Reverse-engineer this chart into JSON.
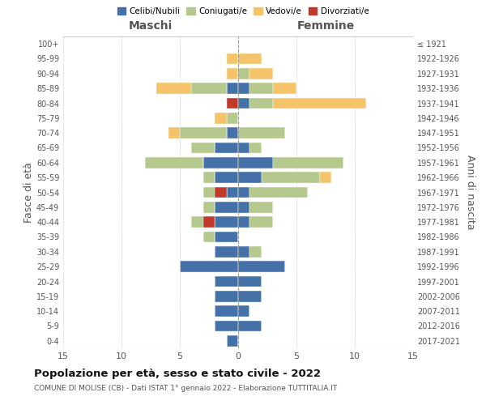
{
  "age_groups": [
    "0-4",
    "5-9",
    "10-14",
    "15-19",
    "20-24",
    "25-29",
    "30-34",
    "35-39",
    "40-44",
    "45-49",
    "50-54",
    "55-59",
    "60-64",
    "65-69",
    "70-74",
    "75-79",
    "80-84",
    "85-89",
    "90-94",
    "95-99",
    "100+"
  ],
  "birth_years": [
    "2017-2021",
    "2012-2016",
    "2007-2011",
    "2002-2006",
    "1997-2001",
    "1992-1996",
    "1987-1991",
    "1982-1986",
    "1977-1981",
    "1972-1976",
    "1967-1971",
    "1962-1966",
    "1957-1961",
    "1952-1956",
    "1947-1951",
    "1942-1946",
    "1937-1941",
    "1932-1936",
    "1927-1931",
    "1922-1926",
    "≤ 1921"
  ],
  "maschi": {
    "celibi": [
      1,
      2,
      2,
      2,
      2,
      5,
      2,
      2,
      2,
      2,
      1,
      2,
      3,
      2,
      1,
      0,
      0,
      1,
      0,
      0,
      0
    ],
    "coniugati": [
      0,
      0,
      0,
      0,
      0,
      0,
      0,
      1,
      2,
      1,
      2,
      1,
      5,
      2,
      4,
      1,
      1,
      3,
      0,
      0,
      0
    ],
    "vedovi": [
      0,
      0,
      0,
      0,
      0,
      0,
      0,
      0,
      0,
      0,
      0,
      0,
      0,
      0,
      1,
      1,
      0,
      3,
      1,
      1,
      0
    ],
    "divorziati": [
      0,
      0,
      0,
      0,
      0,
      0,
      0,
      0,
      1,
      0,
      1,
      0,
      0,
      0,
      0,
      0,
      1,
      0,
      0,
      0,
      0
    ]
  },
  "femmine": {
    "nubili": [
      0,
      2,
      1,
      2,
      2,
      4,
      1,
      0,
      1,
      1,
      1,
      2,
      3,
      1,
      0,
      0,
      1,
      1,
      0,
      0,
      0
    ],
    "coniugate": [
      0,
      0,
      0,
      0,
      0,
      0,
      1,
      0,
      2,
      2,
      5,
      5,
      6,
      1,
      4,
      0,
      2,
      2,
      1,
      0,
      0
    ],
    "vedove": [
      0,
      0,
      0,
      0,
      0,
      0,
      0,
      0,
      0,
      0,
      0,
      1,
      0,
      0,
      0,
      0,
      8,
      2,
      2,
      2,
      0
    ],
    "divorziate": [
      0,
      0,
      0,
      0,
      0,
      0,
      0,
      0,
      0,
      0,
      0,
      0,
      0,
      0,
      0,
      0,
      0,
      0,
      0,
      0,
      0
    ]
  },
  "colors": {
    "celibi": "#4472a8",
    "coniugati": "#b5c98e",
    "vedovi": "#f5c46a",
    "divorziati": "#c0392b"
  },
  "title": "Popolazione per età, sesso e stato civile - 2022",
  "subtitle": "COMUNE DI MOLISE (CB) - Dati ISTAT 1° gennaio 2022 - Elaborazione TUTTITALIA.IT",
  "ylabel_left": "Fasce di età",
  "ylabel_right": "Anni di nascita",
  "xlabel_left": "Maschi",
  "xlabel_right": "Femmine",
  "xlim": 15,
  "legend_labels": [
    "Celibi/Nubili",
    "Coniugati/e",
    "Vedovi/e",
    "Divorziati/e"
  ],
  "background_color": "#ffffff"
}
